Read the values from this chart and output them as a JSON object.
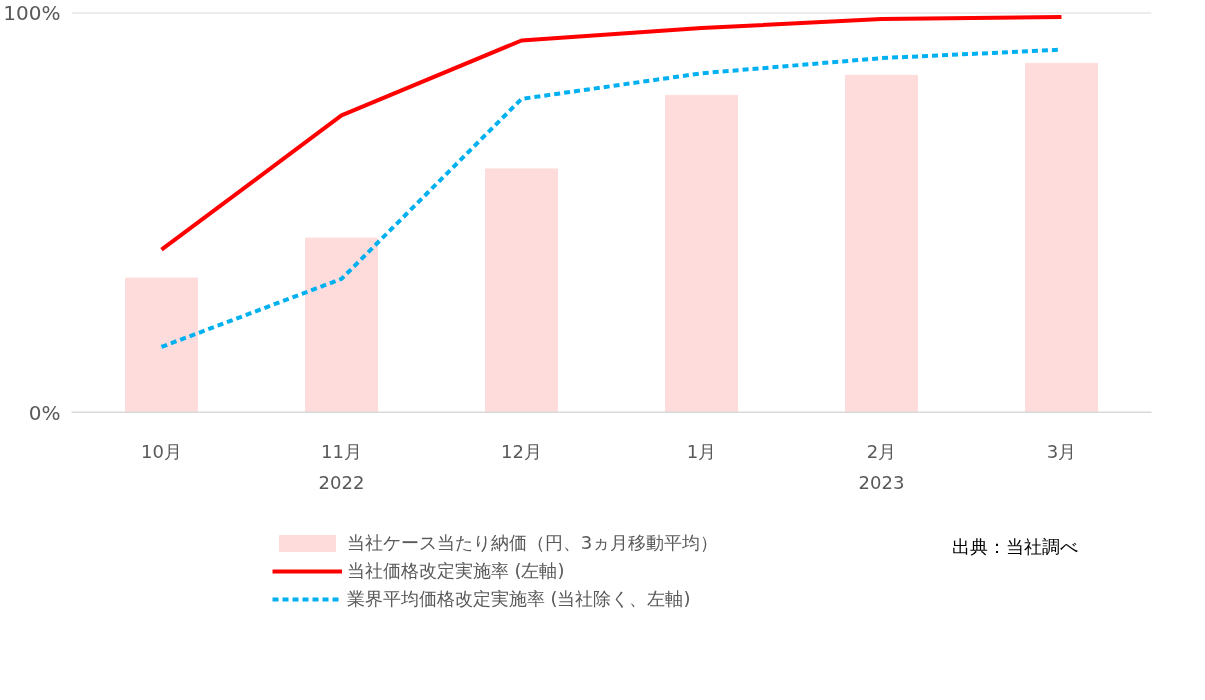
{
  "chart_data": {
    "type": "bar",
    "categories": [
      "10月",
      "11月",
      "12月",
      "1月",
      "2月",
      "3月"
    ],
    "series": [
      {
        "name": "当社ケース当たり納価（円、3ヵ月移動平均）",
        "color": "#ffdcdc",
        "values": [
          33.6,
          43.6,
          60.9,
          79.3,
          84.3,
          87.3
        ]
      },
      {
        "name": "当社価格改定実施率 (左軸)",
        "type": "line",
        "color": "#ff0000",
        "line_style": "solid",
        "values": [
          40.7,
          74.3,
          93.0,
          96.1,
          98.4,
          98.9
        ]
      },
      {
        "name": "業界平均価格改定実施率 (当社除く、左軸)",
        "type": "line",
        "color": "#00b0f0",
        "line_style": "dashed",
        "values": [
          16.4,
          33.4,
          78.4,
          84.8,
          88.6,
          90.7
        ]
      }
    ],
    "ylim": [
      0,
      100
    ],
    "yticks": [
      {
        "value": 0,
        "label": "0%"
      },
      {
        "value": 100,
        "label": "100%"
      }
    ],
    "grid": "y",
    "legend": "bottom",
    "annotations": [
      "2022",
      "2023",
      "出典：当社調べ"
    ]
  }
}
